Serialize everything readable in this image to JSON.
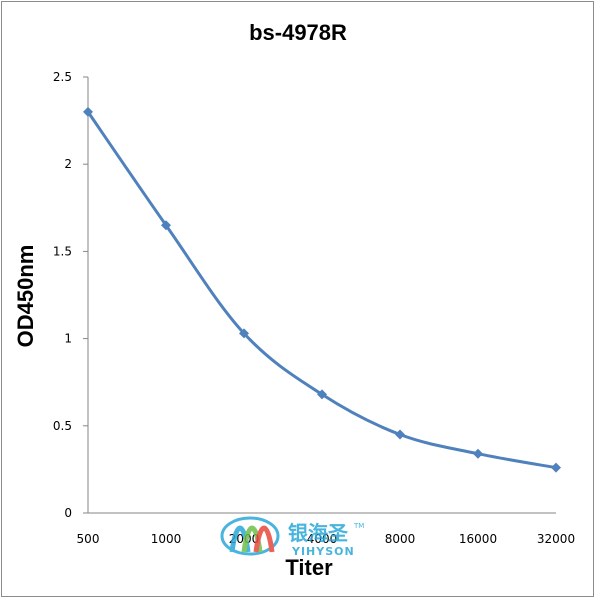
{
  "chart_data": {
    "type": "line",
    "title": "bs-4978R",
    "xlabel": "Titer",
    "ylabel": "OD450nm",
    "categories": [
      "500",
      "1000",
      "2000",
      "4000",
      "8000",
      "16000",
      "32000"
    ],
    "series": [
      {
        "values": [
          2.3,
          1.65,
          1.03,
          0.68,
          0.45,
          0.34,
          0.26
        ]
      }
    ],
    "ylim": [
      0,
      2.5
    ],
    "yticks": [
      "0",
      "0.5",
      "1",
      "1.5",
      "2",
      "2.5"
    ],
    "grid": false,
    "legend": "none",
    "line_color": "#4f81bd",
    "marker": "diamond"
  },
  "watermark": {
    "cn": "银海圣",
    "en": "YIHYSON",
    "tm": "TM",
    "colors": [
      "#2aa7d8",
      "#6cc04a",
      "#e8473c"
    ]
  }
}
